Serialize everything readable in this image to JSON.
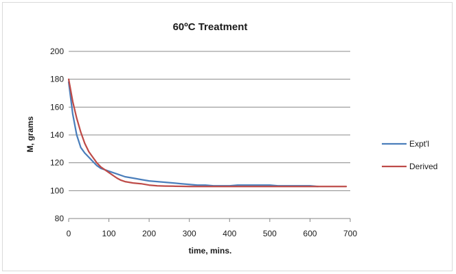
{
  "chart_data": {
    "type": "line",
    "title": "60ºC Treatment",
    "xlabel": "time, mins.",
    "ylabel": "M, grams",
    "xlim": [
      0,
      700
    ],
    "ylim": [
      80,
      200
    ],
    "xticks": [
      0,
      100,
      200,
      300,
      400,
      500,
      600,
      700
    ],
    "yticks": [
      80,
      100,
      120,
      140,
      160,
      180,
      200
    ],
    "grid": "horizontal",
    "legend_position": "right",
    "series": [
      {
        "name": "Expt'l",
        "color": "#4a7ebb",
        "x": [
          0,
          10,
          20,
          30,
          40,
          50,
          60,
          70,
          80,
          90,
          100,
          120,
          140,
          160,
          180,
          200,
          220,
          240,
          260,
          280,
          300,
          320,
          340,
          360,
          380,
          400,
          420,
          440,
          460,
          480,
          500,
          520,
          540,
          560,
          580,
          600,
          620
        ],
        "y": [
          178,
          155,
          140,
          131,
          127,
          124,
          121,
          118,
          116,
          115,
          114,
          112,
          110,
          109,
          108,
          107,
          106.5,
          106,
          105.5,
          105,
          104.5,
          104,
          104,
          103.5,
          103.5,
          103.5,
          104,
          104,
          104,
          104,
          104,
          103.5,
          103.5,
          103.5,
          103.5,
          103.5,
          103
        ]
      },
      {
        "name": "Derived",
        "color": "#be4b48",
        "x": [
          0,
          10,
          20,
          30,
          40,
          50,
          60,
          70,
          80,
          90,
          100,
          110,
          120,
          130,
          140,
          150,
          160,
          180,
          200,
          220,
          240,
          260,
          280,
          300,
          350,
          400,
          450,
          500,
          550,
          600,
          650,
          690
        ],
        "y": [
          180,
          164,
          152,
          142,
          134,
          128,
          124,
          120,
          117,
          115,
          113,
          111,
          109,
          107.5,
          106.5,
          106,
          105.5,
          105,
          104,
          103.5,
          103.3,
          103.2,
          103.1,
          103,
          103,
          103,
          103,
          103,
          103,
          103,
          103,
          103
        ]
      }
    ]
  }
}
